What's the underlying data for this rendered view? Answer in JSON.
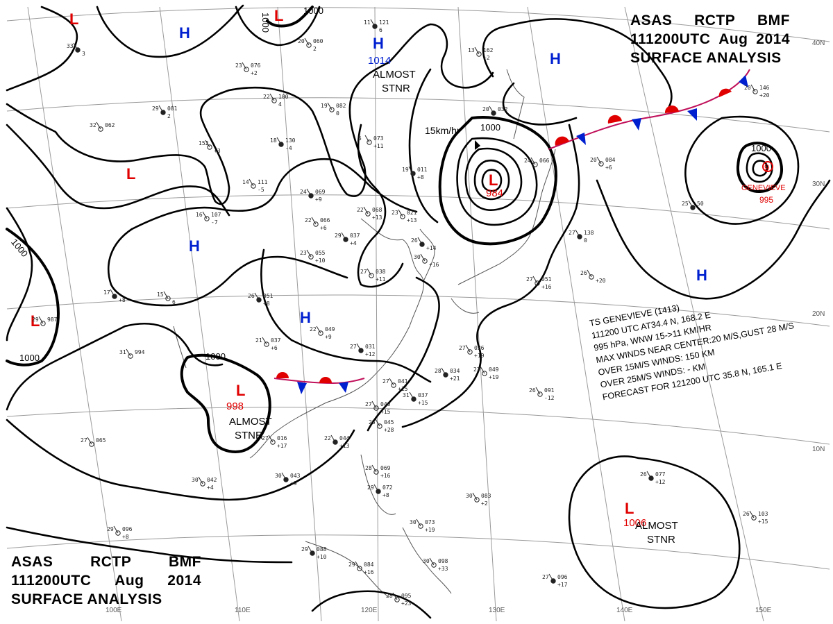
{
  "header": {
    "line1": [
      "ASAS",
      "RCTP",
      "BMF"
    ],
    "line2": [
      "111200UTC",
      "Aug",
      "2014"
    ],
    "line3": "SURFACE  ANALYSIS"
  },
  "grid_labels": {
    "lon": [
      "100E",
      "110E",
      "120E",
      "130E",
      "140E",
      "150E"
    ],
    "lat": [
      "40N",
      "30N",
      "20N",
      "10N"
    ]
  },
  "colors": {
    "low": "#e00000",
    "high": "#0020d0",
    "warm_front": "#e00000",
    "cold_front": "#0020d0",
    "isobar": "#000000"
  },
  "pressure_centers": [
    {
      "type": "L",
      "value": ""
    },
    {
      "type": "L",
      "value": ""
    },
    {
      "type": "L",
      "value": ""
    },
    {
      "type": "L",
      "value": ""
    },
    {
      "type": "L",
      "value": "984"
    },
    {
      "type": "L",
      "value": "998"
    },
    {
      "type": "L",
      "value": "1006"
    },
    {
      "type": "H",
      "value": ""
    },
    {
      "type": "H",
      "value": "1014"
    },
    {
      "type": "H",
      "value": ""
    },
    {
      "type": "H",
      "value": ""
    },
    {
      "type": "H",
      "value": ""
    },
    {
      "type": "H",
      "value": ""
    }
  ],
  "labels": {
    "stnr_1014": [
      "ALMOST",
      "STNR"
    ],
    "stnr_998": [
      "ALMOST",
      "STNR"
    ],
    "stnr_1006": [
      "ALMOST",
      "STNR"
    ],
    "storm_motion": "15km/hr",
    "genevieve_name": "GENEVIEVE",
    "genevieve_pressure": "995",
    "genevieve_symbol": "9"
  },
  "isobar_labels": [
    "1000",
    "1000",
    "1000",
    "1000",
    "1000",
    "1000",
    "1000"
  ],
  "storm_bulletin": [
    "TS  GENEVIEVE  (1413)",
    "111200 UTC  AT34.4 N, 168.2 E",
    "995 hPa, WNW 15->11 KM/HR",
    "MAX WINDS NEAR CENTER:20 M/S,GUST 28 M/S",
    "OVER 15M/S WINDS: 150 KM",
    "OVER 25M/S WINDS: - KM",
    "FORECAST FOR 121200 UTC 35.8 N, 165.1 E"
  ],
  "stations": [
    {
      "t": "33",
      "p": "",
      "x": "3"
    },
    {
      "t": "23",
      "p": "076",
      "x": "+2"
    },
    {
      "t": "20",
      "p": "060",
      "x": "2"
    },
    {
      "t": "11",
      "p": "121",
      "x": "6"
    },
    {
      "t": "13",
      "p": "162",
      "x": "+2"
    },
    {
      "t": "22",
      "p": "100",
      "x": "4"
    },
    {
      "t": "29",
      "p": "081",
      "x": "2"
    },
    {
      "t": "19",
      "p": "082",
      "x": "0"
    },
    {
      "t": "32",
      "p": "062",
      "x": ""
    },
    {
      "t": "18",
      "p": "130",
      "x": "-4"
    },
    {
      "t": "152",
      "p": "",
      "x": "+3"
    },
    {
      "t": "14",
      "p": "111",
      "x": "-5"
    },
    {
      "t": "24",
      "p": "069",
      "x": "+9"
    },
    {
      "t": "16",
      "p": "107",
      "x": "-7"
    },
    {
      "t": "22",
      "p": "066",
      "x": "+6"
    },
    {
      "t": "29",
      "p": "037",
      "x": "+4"
    },
    {
      "t": "23",
      "p": "055",
      "x": "+10"
    },
    {
      "t": "23",
      "p": "021",
      "x": "+13"
    },
    {
      "t": "19",
      "p": "011",
      "x": "+8"
    },
    {
      "t": "5",
      "p": "073",
      "x": "+11"
    },
    {
      "t": "22",
      "p": "068",
      "x": "+13"
    },
    {
      "t": "26",
      "p": "",
      "x": "+14"
    },
    {
      "t": "27",
      "p": "038",
      "x": "+11"
    },
    {
      "t": "30",
      "p": "",
      "x": "+16"
    },
    {
      "t": "26",
      "p": "051",
      "x": "+8"
    },
    {
      "t": "22",
      "p": "049",
      "x": "+9"
    },
    {
      "t": "21",
      "p": "037",
      "x": "+6"
    },
    {
      "t": "27",
      "p": "031",
      "x": "+12"
    },
    {
      "t": "31",
      "p": "994",
      "x": ""
    },
    {
      "t": "29",
      "p": "987",
      "x": ""
    },
    {
      "t": "17",
      "p": "",
      "x": "+8"
    },
    {
      "t": "15",
      "p": "",
      "x": "6"
    },
    {
      "t": "27",
      "p": "036",
      "x": "+19"
    },
    {
      "t": "28",
      "p": "034",
      "x": "+21"
    },
    {
      "t": "27",
      "p": "049",
      "x": "+19"
    },
    {
      "t": "27",
      "p": "041",
      "x": "+15"
    },
    {
      "t": "31",
      "p": "037",
      "x": "+15"
    },
    {
      "t": "27",
      "p": "040",
      "x": "+15"
    },
    {
      "t": "25",
      "p": "045",
      "x": "+28"
    },
    {
      "t": "22",
      "p": "044",
      "x": "+13"
    },
    {
      "t": "27",
      "p": "016",
      "x": "+17"
    },
    {
      "t": "27",
      "p": "065",
      "x": ""
    },
    {
      "t": "30",
      "p": "043",
      "x": "+9"
    },
    {
      "t": "30",
      "p": "042",
      "x": "+4"
    },
    {
      "t": "28",
      "p": "069",
      "x": "+16"
    },
    {
      "t": "29",
      "p": "072",
      "x": "+8"
    },
    {
      "t": "30",
      "p": "083",
      "x": "+2"
    },
    {
      "t": "26",
      "p": "091",
      "x": "-12"
    },
    {
      "t": "26",
      "p": "077",
      "x": "+12"
    },
    {
      "t": "26",
      "p": "103",
      "x": "+15"
    },
    {
      "t": "29",
      "p": "096",
      "x": "+8"
    },
    {
      "t": "29",
      "p": "088",
      "x": "+10"
    },
    {
      "t": "29",
      "p": "084",
      "x": "+16"
    },
    {
      "t": "28",
      "p": "095",
      "x": "+23"
    },
    {
      "t": "27",
      "p": "096",
      "x": "+17"
    },
    {
      "t": "30",
      "p": "098",
      "x": "+33"
    },
    {
      "t": "30",
      "p": "073",
      "x": "+19"
    },
    {
      "t": "27",
      "p": "138",
      "x": "0"
    },
    {
      "t": "27",
      "p": "051",
      "x": "+16"
    },
    {
      "t": "26",
      "p": "",
      "x": "+20"
    },
    {
      "t": "25",
      "p": "50",
      "x": ""
    },
    {
      "t": "20",
      "p": "146",
      "x": "+20"
    },
    {
      "t": "20",
      "p": "084",
      "x": "+6"
    },
    {
      "t": "20",
      "p": "032",
      "x": ""
    },
    {
      "t": "24",
      "p": "066",
      "x": ""
    }
  ]
}
